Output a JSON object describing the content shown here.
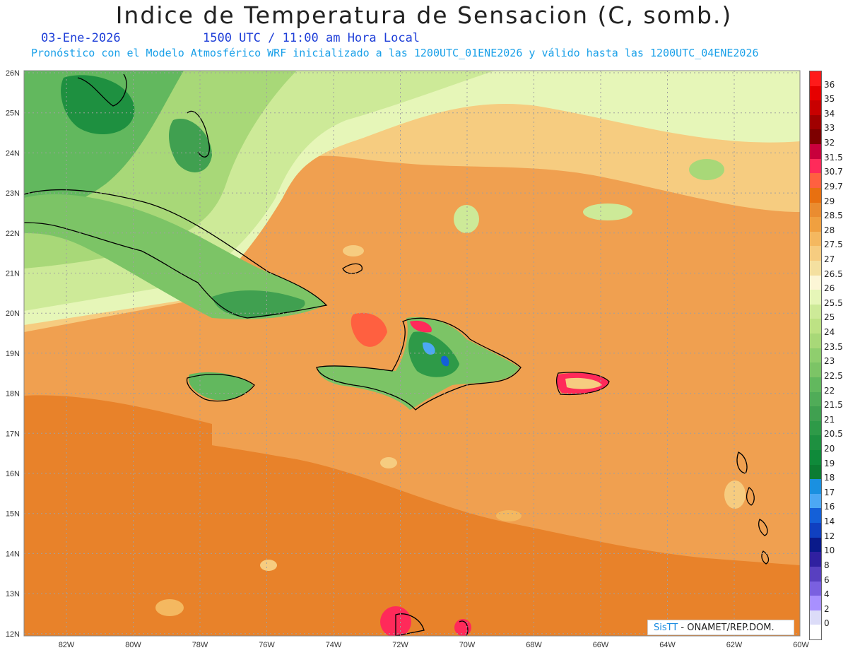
{
  "header": {
    "title": "Indice de Temperatura de Sensacion (C, somb.)",
    "date": "03-Ene-2026",
    "time": "1500 UTC / 11:00 am Hora Local",
    "subtitle": "Pronóstico con el Modelo Atmosférico WRF inicializado a las 1200UTC_01ENE2026 y válido hasta las  1200UTC_04ENE2026"
  },
  "map": {
    "lat_labels": [
      "26N",
      "25N",
      "24N",
      "23N",
      "22N",
      "21N",
      "20N",
      "19N",
      "18N",
      "17N",
      "16N",
      "15N",
      "14N",
      "13N",
      "12N"
    ],
    "lon_labels": [
      "82W",
      "80W",
      "78W",
      "76W",
      "74W",
      "72W",
      "70W",
      "68W",
      "66W",
      "64W",
      "62W",
      "60W"
    ],
    "ocean_color": "#f0a050",
    "south_color": "#e8822a"
  },
  "legend": {
    "levels": [
      "36",
      "35",
      "34",
      "33",
      "32",
      "31.5",
      "30.7",
      "29.7",
      "29",
      "28.5",
      "28",
      "27.5",
      "27",
      "26.5",
      "26",
      "25.5",
      "25",
      "24",
      "23.5",
      "23",
      "22.5",
      "22",
      "21.5",
      "21",
      "20.5",
      "20",
      "19",
      "18",
      "17",
      "16",
      "14",
      "12",
      "10",
      "8",
      "6",
      "4",
      "2",
      "0"
    ],
    "colors": [
      "#ff1a1a",
      "#e60000",
      "#c80000",
      "#a00000",
      "#7d0000",
      "#c8003c",
      "#ff2a5a",
      "#ff6040",
      "#e87010",
      "#ea8c30",
      "#f0a040",
      "#f4b860",
      "#f6cc80",
      "#f4e0a0",
      "#fcf6d6",
      "#e6f6b8",
      "#cdea98",
      "#bde284",
      "#a8d878",
      "#8fce6e",
      "#7cc466",
      "#62b85e",
      "#50ac58",
      "#40a050",
      "#2e9a48",
      "#1e9040",
      "#0f8a3a",
      "#0c7c32",
      "#1a90e0",
      "#4ca8f4",
      "#1460d8",
      "#1040c0",
      "#0a1a8a",
      "#3020a0",
      "#5840c0",
      "#7a60e0",
      "#a890ff",
      "#dcdcf8"
    ]
  },
  "credit": {
    "sis": "SisTT",
    "text": " - ONAMET/REP.DOM."
  }
}
